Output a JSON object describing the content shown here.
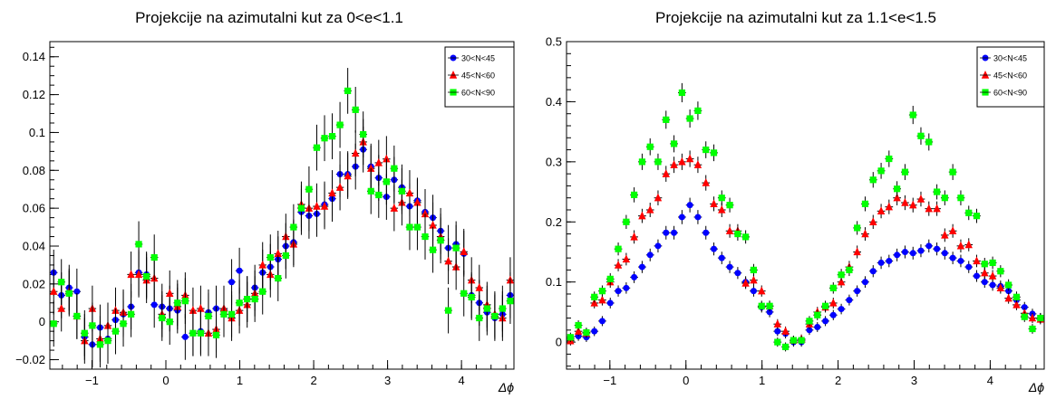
{
  "chart_data": [
    {
      "type": "scatter",
      "title": "Projekcije na azimutalni kut za 0<e<1.1",
      "xlabel": "Δϕ",
      "ylabel": "",
      "xlim": [
        -1.57,
        4.71
      ],
      "ylim": [
        -0.025,
        0.148
      ],
      "xticks": [
        "−1",
        "0",
        "1",
        "2",
        "3",
        "4"
      ],
      "yticks": [
        "−0.02",
        "0",
        "0.02",
        "0.04",
        "0.06",
        "0.08",
        "0.1",
        "0.12",
        "0.14"
      ],
      "legend_position": "top-right",
      "x": [
        -1.518,
        -1.414,
        -1.309,
        -1.204,
        -1.1,
        -0.995,
        -0.89,
        -0.785,
        -0.681,
        -0.576,
        -0.471,
        -0.367,
        -0.262,
        -0.157,
        -0.052,
        0.052,
        0.157,
        0.262,
        0.367,
        0.471,
        0.576,
        0.681,
        0.785,
        0.89,
        0.995,
        1.1,
        1.204,
        1.309,
        1.414,
        1.518,
        1.623,
        1.728,
        1.833,
        1.937,
        2.042,
        2.147,
        2.251,
        2.356,
        2.461,
        2.566,
        2.67,
        2.775,
        2.88,
        2.985,
        3.089,
        3.194,
        3.299,
        3.403,
        3.508,
        3.613,
        3.718,
        3.822,
        3.927,
        4.032,
        4.136,
        4.241,
        4.346,
        4.451,
        4.555,
        4.66
      ],
      "series": [
        {
          "name": "30<N<45",
          "color": "#0000ff",
          "marker": "circle",
          "values": [
            0.026,
            0.014,
            0.018,
            0.016,
            -0.008,
            -0.012,
            -0.003,
            -0.009,
            0.001,
            0.004,
            0.008,
            0.026,
            0.025,
            0.009,
            0.008,
            0.007,
            0.006,
            -0.008,
            -0.006,
            -0.005,
            0.005,
            0.007,
            0.006,
            0.021,
            0.027,
            0.012,
            0.018,
            0.026,
            0.029,
            0.033,
            0.04,
            0.042,
            0.058,
            0.056,
            0.057,
            0.062,
            0.065,
            0.078,
            0.078,
            0.082,
            0.091,
            0.082,
            0.076,
            0.066,
            0.075,
            0.071,
            0.061,
            0.064,
            0.058,
            0.055,
            0.048,
            0.039,
            0.041,
            0.036,
            0.014,
            0.01,
            0.005,
            0.002,
            0.004,
            0.014
          ]
        },
        {
          "name": "45<N<60",
          "color": "#ff0000",
          "marker": "triangle",
          "values": [
            0.016,
            0.007,
            0.016,
            0.003,
            -0.01,
            0.007,
            -0.009,
            -0.002,
            0.006,
            0.005,
            0.025,
            0.025,
            0.022,
            0.023,
            0.004,
            0.015,
            0.008,
            0.014,
            0.006,
            0.007,
            -0.006,
            -0.004,
            0.007,
            0.002,
            0.006,
            0.009,
            0.015,
            0.03,
            0.025,
            0.036,
            0.045,
            0.041,
            0.062,
            0.06,
            0.061,
            0.061,
            0.068,
            0.071,
            0.077,
            0.089,
            0.095,
            0.081,
            0.084,
            0.086,
            0.06,
            0.063,
            0.068,
            0.063,
            0.057,
            0.051,
            0.045,
            0.032,
            0.029,
            0.037,
            0.022,
            0.018,
            0.009,
            0.004,
            0.002,
            0.022
          ]
        },
        {
          "name": "60<N<90",
          "color": "#00ff00",
          "marker": "square",
          "values": [
            -0.001,
            0.021,
            0.015,
            0.003,
            -0.006,
            -0.002,
            -0.012,
            -0.01,
            -0.005,
            -0.001,
            0.004,
            0.041,
            0.024,
            0.034,
            0.002,
            0.0,
            0.01,
            0.011,
            -0.006,
            -0.006,
            0.003,
            -0.007,
            0.004,
            0.004,
            0.01,
            0.012,
            0.012,
            0.016,
            0.034,
            0.023,
            0.035,
            0.05,
            0.06,
            0.07,
            0.092,
            0.097,
            0.098,
            0.104,
            0.122,
            0.112,
            0.099,
            0.069,
            0.067,
            0.074,
            0.081,
            0.069,
            0.05,
            0.05,
            0.045,
            0.038,
            0.043,
            0.006,
            0.039,
            0.015,
            0.013,
            0.002,
            0.007,
            0.003,
            0.007,
            0.011
          ]
        }
      ]
    },
    {
      "type": "scatter",
      "title": "Projekcije na azimutalni kut za 1.1<e<1.5",
      "xlabel": "Δϕ",
      "ylabel": "",
      "xlim": [
        -1.57,
        4.71
      ],
      "ylim": [
        -0.045,
        0.5
      ],
      "xticks": [
        "−1",
        "0",
        "1",
        "2",
        "3",
        "4"
      ],
      "yticks": [
        "0",
        "0.1",
        "0.2",
        "0.3",
        "0.4",
        "0.5"
      ],
      "legend_position": "top-right",
      "x": [
        -1.518,
        -1.414,
        -1.309,
        -1.204,
        -1.1,
        -0.995,
        -0.89,
        -0.785,
        -0.681,
        -0.576,
        -0.471,
        -0.367,
        -0.262,
        -0.157,
        -0.052,
        0.052,
        0.157,
        0.262,
        0.367,
        0.471,
        0.576,
        0.681,
        0.785,
        0.89,
        0.995,
        1.1,
        1.204,
        1.309,
        1.414,
        1.518,
        1.623,
        1.728,
        1.833,
        1.937,
        2.042,
        2.147,
        2.251,
        2.356,
        2.461,
        2.566,
        2.67,
        2.775,
        2.88,
        2.985,
        3.089,
        3.194,
        3.299,
        3.403,
        3.508,
        3.613,
        3.718,
        3.822,
        3.927,
        4.032,
        4.136,
        4.241,
        4.346,
        4.451,
        4.555,
        4.66
      ],
      "series": [
        {
          "name": "30<N<45",
          "color": "#0000ff",
          "marker": "circle",
          "values": [
            0.005,
            0.01,
            0.008,
            0.018,
            0.035,
            0.065,
            0.085,
            0.09,
            0.108,
            0.125,
            0.145,
            0.16,
            0.182,
            0.182,
            0.208,
            0.228,
            0.208,
            0.182,
            0.155,
            0.14,
            0.125,
            0.115,
            0.1,
            0.085,
            0.058,
            0.05,
            0.018,
            0.014,
            0.0,
            0.0,
            0.02,
            0.025,
            0.035,
            0.045,
            0.055,
            0.07,
            0.085,
            0.1,
            0.118,
            0.132,
            0.135,
            0.145,
            0.15,
            0.148,
            0.152,
            0.16,
            0.155,
            0.148,
            0.14,
            0.135,
            0.125,
            0.11,
            0.1,
            0.095,
            0.093,
            0.085,
            0.07,
            0.058,
            0.047,
            0.04
          ]
        },
        {
          "name": "45<N<60",
          "color": "#ff0000",
          "marker": "triangle",
          "values": [
            0.002,
            0.018,
            0.015,
            0.065,
            0.07,
            0.1,
            0.128,
            0.138,
            0.175,
            0.21,
            0.22,
            0.24,
            0.28,
            0.295,
            0.3,
            0.305,
            0.295,
            0.265,
            0.23,
            0.22,
            0.185,
            0.185,
            0.098,
            0.103,
            0.085,
            0.06,
            0.03,
            0.018,
            0.003,
            0.005,
            0.03,
            0.05,
            0.058,
            0.065,
            0.1,
            0.125,
            0.15,
            0.18,
            0.2,
            0.218,
            0.225,
            0.24,
            0.232,
            0.228,
            0.238,
            0.222,
            0.222,
            0.178,
            0.185,
            0.16,
            0.162,
            0.135,
            0.115,
            0.11,
            0.09,
            0.073,
            0.062,
            0.048,
            0.04,
            0.038
          ]
        },
        {
          "name": "60<N<90",
          "color": "#00ff00",
          "marker": "square",
          "values": [
            0.008,
            0.028,
            0.016,
            0.075,
            0.085,
            0.105,
            0.155,
            0.2,
            0.245,
            0.3,
            0.325,
            0.3,
            0.37,
            0.33,
            0.415,
            0.372,
            0.385,
            0.32,
            0.315,
            0.24,
            0.228,
            0.18,
            0.175,
            0.12,
            0.06,
            0.06,
            0.0,
            -0.008,
            0.003,
            0.003,
            0.035,
            0.045,
            0.06,
            0.09,
            0.112,
            0.12,
            0.19,
            0.23,
            0.27,
            0.285,
            0.305,
            0.255,
            0.283,
            0.378,
            0.343,
            0.333,
            0.25,
            0.24,
            0.283,
            0.24,
            0.215,
            0.21,
            0.13,
            0.132,
            0.118,
            0.095,
            0.075,
            0.042,
            0.022,
            0.04
          ]
        }
      ]
    }
  ]
}
